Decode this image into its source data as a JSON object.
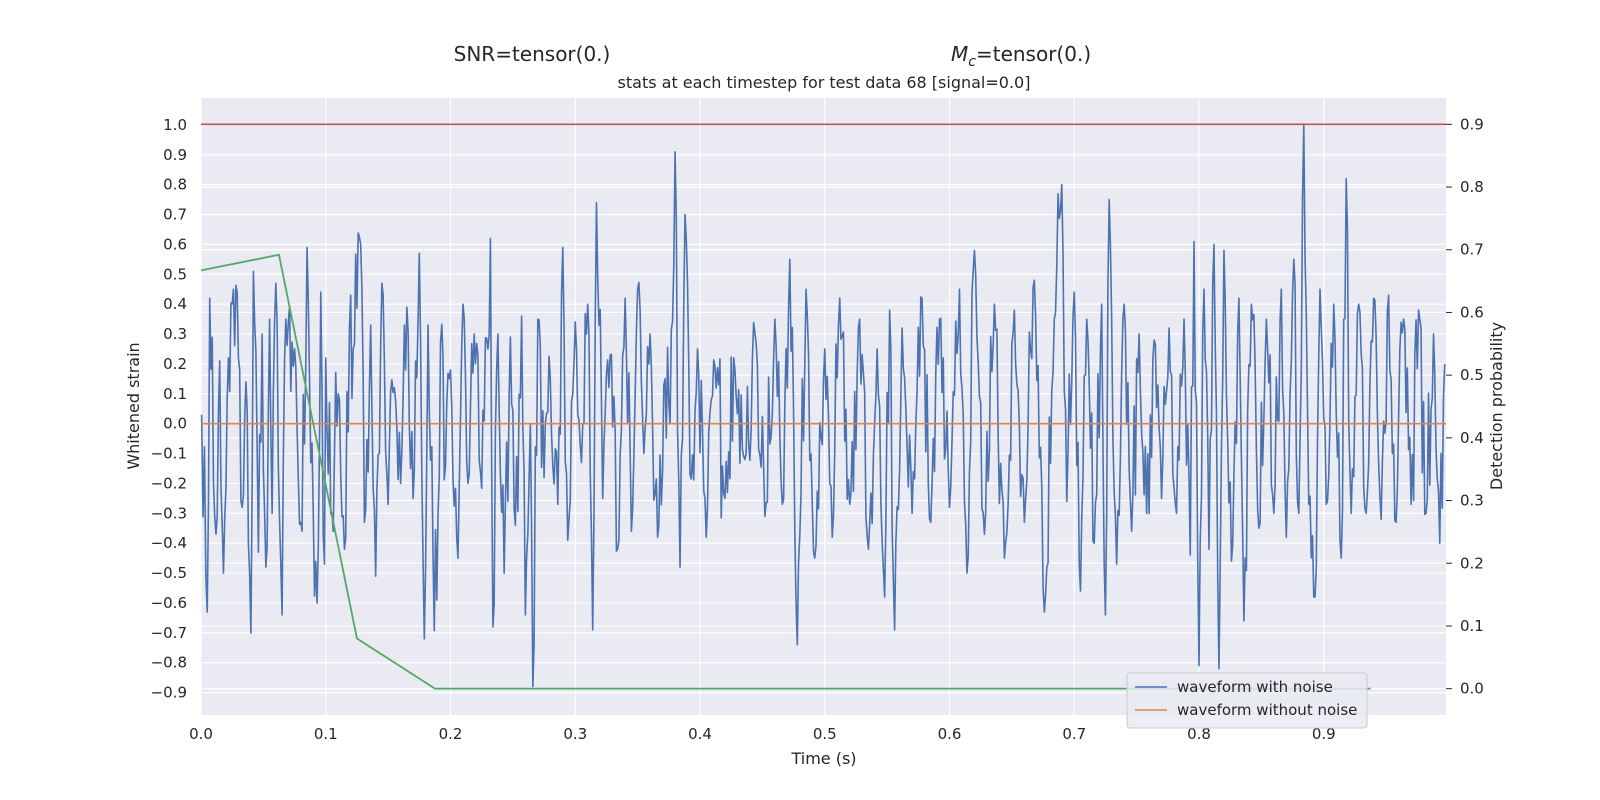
{
  "header": {
    "snr_label": "SNR=tensor(0.)",
    "mc_symbol": "M",
    "mc_subscript": "c",
    "mc_value": "=tensor(0.)"
  },
  "chart_data": {
    "type": "line",
    "title": "stats at each timestep for test data 68 [signal=0.0]",
    "xlabel": "Time (s)",
    "ylabel": "Whitened strain",
    "ylabel_right": "Detection probability",
    "xlim": [
      0.0,
      0.998
    ],
    "ylim": [
      -0.975,
      1.09
    ],
    "ylim_right": [
      -0.042,
      0.942
    ],
    "x_ticks": [
      "0.0",
      "0.1",
      "0.2",
      "0.3",
      "0.4",
      "0.5",
      "0.6",
      "0.7",
      "0.8",
      "0.9"
    ],
    "y_ticks": [
      "1.0",
      "0.9",
      "0.8",
      "0.7",
      "0.6",
      "0.5",
      "0.4",
      "0.3",
      "0.2",
      "0.1",
      "0.0",
      "−0.1",
      "−0.2",
      "−0.3",
      "−0.4",
      "−0.5",
      "−0.6",
      "−0.7",
      "−0.8",
      "−0.9"
    ],
    "y_right_ticks": [
      "0.9",
      "0.8",
      "0.7",
      "0.6",
      "0.5",
      "0.4",
      "0.3",
      "0.2",
      "0.1",
      "0.0"
    ],
    "grid": true,
    "legend_position": "lower-right",
    "colors": {
      "background": "#eaeaf2",
      "noisy": "#4c72b0",
      "clean": "#dd8452",
      "probability": "#55a868",
      "threshold": "#c44e52",
      "grid": "#ffffff"
    },
    "series": [
      {
        "name": "waveform with noise",
        "axis": "left",
        "sample_rate": 1024,
        "peaks": [
          {
            "x": 0.0005,
            "y": 0.03
          },
          {
            "x": 0.005,
            "y": -0.63
          },
          {
            "x": 0.007,
            "y": 0.42
          },
          {
            "x": 0.012,
            "y": -0.37
          },
          {
            "x": 0.015,
            "y": 0.21
          },
          {
            "x": 0.018,
            "y": -0.5
          },
          {
            "x": 0.022,
            "y": 0.22
          },
          {
            "x": 0.026,
            "y": 0.45
          },
          {
            "x": 0.029,
            "y": 0.44
          },
          {
            "x": 0.033,
            "y": -0.28
          },
          {
            "x": 0.036,
            "y": 0.14
          },
          {
            "x": 0.04,
            "y": -0.7
          },
          {
            "x": 0.042,
            "y": 0.51
          },
          {
            "x": 0.046,
            "y": -0.43
          },
          {
            "x": 0.049,
            "y": 0.3
          },
          {
            "x": 0.052,
            "y": -0.48
          },
          {
            "x": 0.055,
            "y": 0.35
          },
          {
            "x": 0.057,
            "y": -0.3
          },
          {
            "x": 0.06,
            "y": 0.47
          },
          {
            "x": 0.065,
            "y": -0.64
          },
          {
            "x": 0.068,
            "y": 0.35
          },
          {
            "x": 0.075,
            "y": 0.25
          },
          {
            "x": 0.08,
            "y": -0.33
          },
          {
            "x": 0.084,
            "y": 0.2
          },
          {
            "x": 0.085,
            "y": 0.59
          },
          {
            "x": 0.09,
            "y": -0.3
          },
          {
            "x": 0.093,
            "y": -0.6
          },
          {
            "x": 0.096,
            "y": 0.44
          },
          {
            "x": 0.099,
            "y": -0.47
          },
          {
            "x": 0.1,
            "y": 0.22
          },
          {
            "x": 0.105,
            "y": -0.3
          },
          {
            "x": 0.11,
            "y": 0.1
          },
          {
            "x": 0.115,
            "y": -0.42
          },
          {
            "x": 0.119,
            "y": 0.32
          },
          {
            "x": 0.122,
            "y": 0.25
          },
          {
            "x": 0.128,
            "y": 0.6
          },
          {
            "x": 0.131,
            "y": -0.33
          },
          {
            "x": 0.136,
            "y": 0.33
          },
          {
            "x": 0.14,
            "y": -0.51
          },
          {
            "x": 0.145,
            "y": 0.47
          },
          {
            "x": 0.15,
            "y": -0.27
          },
          {
            "x": 0.155,
            "y": 0.12
          },
          {
            "x": 0.16,
            "y": -0.2
          },
          {
            "x": 0.165,
            "y": 0.39
          },
          {
            "x": 0.17,
            "y": -0.25
          },
          {
            "x": 0.175,
            "y": 0.57
          },
          {
            "x": 0.179,
            "y": -0.72
          },
          {
            "x": 0.182,
            "y": 0.33
          },
          {
            "x": 0.186,
            "y": -0.44
          },
          {
            "x": 0.189,
            "y": -0.59
          },
          {
            "x": 0.192,
            "y": 0.27
          },
          {
            "x": 0.196,
            "y": -0.14
          },
          {
            "x": 0.2,
            "y": 0.18
          },
          {
            "x": 0.206,
            "y": -0.45
          },
          {
            "x": 0.21,
            "y": 0.4
          },
          {
            "x": 0.214,
            "y": -0.2
          },
          {
            "x": 0.219,
            "y": 0.3
          },
          {
            "x": 0.224,
            "y": -0.16
          },
          {
            "x": 0.23,
            "y": 0.25
          },
          {
            "x": 0.232,
            "y": 0.62
          },
          {
            "x": 0.234,
            "y": -0.68
          },
          {
            "x": 0.238,
            "y": 0.3
          },
          {
            "x": 0.243,
            "y": -0.5
          },
          {
            "x": 0.248,
            "y": 0.29
          },
          {
            "x": 0.252,
            "y": -0.34
          },
          {
            "x": 0.257,
            "y": 0.36
          },
          {
            "x": 0.26,
            "y": -0.64
          },
          {
            "x": 0.264,
            "y": 0.0
          },
          {
            "x": 0.266,
            "y": -0.88
          },
          {
            "x": 0.27,
            "y": 0.35
          },
          {
            "x": 0.275,
            "y": -0.18
          },
          {
            "x": 0.28,
            "y": 0.15
          },
          {
            "x": 0.286,
            "y": -0.27
          },
          {
            "x": 0.29,
            "y": 0.59
          },
          {
            "x": 0.294,
            "y": -0.39
          },
          {
            "x": 0.3,
            "y": 0.34
          },
          {
            "x": 0.305,
            "y": -0.13
          },
          {
            "x": 0.31,
            "y": 0.4
          },
          {
            "x": 0.314,
            "y": -0.69
          },
          {
            "x": 0.317,
            "y": 0.74
          },
          {
            "x": 0.322,
            "y": -0.25
          },
          {
            "x": 0.328,
            "y": 0.23
          },
          {
            "x": 0.334,
            "y": -0.42
          },
          {
            "x": 0.34,
            "y": 0.42
          },
          {
            "x": 0.345,
            "y": -0.36
          },
          {
            "x": 0.35,
            "y": 0.45
          },
          {
            "x": 0.355,
            "y": -0.1
          },
          {
            "x": 0.36,
            "y": 0.3
          },
          {
            "x": 0.366,
            "y": -0.38
          },
          {
            "x": 0.372,
            "y": 0.15
          },
          {
            "x": 0.376,
            "y": 0.0
          },
          {
            "x": 0.38,
            "y": 0.91
          },
          {
            "x": 0.384,
            "y": -0.48
          },
          {
            "x": 0.388,
            "y": 0.7
          },
          {
            "x": 0.392,
            "y": -0.17
          },
          {
            "x": 0.398,
            "y": 0.25
          },
          {
            "x": 0.405,
            "y": -0.38
          },
          {
            "x": 0.412,
            "y": 0.19
          },
          {
            "x": 0.42,
            "y": -0.25
          },
          {
            "x": 0.428,
            "y": 0.18
          },
          {
            "x": 0.436,
            "y": -0.12
          },
          {
            "x": 0.445,
            "y": 0.27
          },
          {
            "x": 0.452,
            "y": -0.31
          },
          {
            "x": 0.46,
            "y": 0.35
          },
          {
            "x": 0.466,
            "y": -0.27
          },
          {
            "x": 0.472,
            "y": 0.55
          },
          {
            "x": 0.478,
            "y": -0.74
          },
          {
            "x": 0.485,
            "y": 0.45
          },
          {
            "x": 0.492,
            "y": -0.45
          },
          {
            "x": 0.5,
            "y": 0.25
          },
          {
            "x": 0.506,
            "y": -0.38
          },
          {
            "x": 0.512,
            "y": 0.42
          },
          {
            "x": 0.52,
            "y": -0.27
          },
          {
            "x": 0.528,
            "y": 0.35
          },
          {
            "x": 0.535,
            "y": -0.42
          },
          {
            "x": 0.542,
            "y": 0.25
          },
          {
            "x": 0.548,
            "y": -0.58
          },
          {
            "x": 0.552,
            "y": 0.38
          },
          {
            "x": 0.556,
            "y": -0.69
          },
          {
            "x": 0.562,
            "y": 0.32
          },
          {
            "x": 0.57,
            "y": -0.3
          },
          {
            "x": 0.578,
            "y": 0.42
          },
          {
            "x": 0.585,
            "y": -0.33
          },
          {
            "x": 0.592,
            "y": 0.35
          },
          {
            "x": 0.6,
            "y": -0.28
          },
          {
            "x": 0.608,
            "y": 0.45
          },
          {
            "x": 0.614,
            "y": -0.5
          },
          {
            "x": 0.62,
            "y": 0.58
          },
          {
            "x": 0.628,
            "y": -0.37
          },
          {
            "x": 0.636,
            "y": 0.4
          },
          {
            "x": 0.644,
            "y": -0.45
          },
          {
            "x": 0.652,
            "y": 0.38
          },
          {
            "x": 0.66,
            "y": -0.33
          },
          {
            "x": 0.668,
            "y": 0.48
          },
          {
            "x": 0.676,
            "y": -0.63
          },
          {
            "x": 0.684,
            "y": 0.35
          },
          {
            "x": 0.69,
            "y": 0.8
          },
          {
            "x": 0.694,
            "y": -0.26
          },
          {
            "x": 0.7,
            "y": 0.44
          },
          {
            "x": 0.705,
            "y": -0.56
          },
          {
            "x": 0.71,
            "y": 0.35
          },
          {
            "x": 0.716,
            "y": -0.4
          },
          {
            "x": 0.722,
            "y": 0.4
          },
          {
            "x": 0.725,
            "y": -0.64
          },
          {
            "x": 0.728,
            "y": 0.75
          },
          {
            "x": 0.734,
            "y": -0.47
          },
          {
            "x": 0.74,
            "y": 0.4
          },
          {
            "x": 0.746,
            "y": -0.36
          },
          {
            "x": 0.752,
            "y": 0.3
          },
          {
            "x": 0.758,
            "y": -0.3
          },
          {
            "x": 0.764,
            "y": 0.28
          },
          {
            "x": 0.77,
            "y": -0.25
          },
          {
            "x": 0.776,
            "y": 0.32
          },
          {
            "x": 0.782,
            "y": -0.3
          },
          {
            "x": 0.788,
            "y": 0.35
          },
          {
            "x": 0.793,
            "y": -0.44
          },
          {
            "x": 0.796,
            "y": 0.61
          },
          {
            "x": 0.8,
            "y": -0.81
          },
          {
            "x": 0.804,
            "y": 0.45
          },
          {
            "x": 0.808,
            "y": -0.42
          },
          {
            "x": 0.812,
            "y": 0.6
          },
          {
            "x": 0.816,
            "y": -0.82
          },
          {
            "x": 0.82,
            "y": 0.58
          },
          {
            "x": 0.826,
            "y": -0.46
          },
          {
            "x": 0.832,
            "y": 0.42
          },
          {
            "x": 0.836,
            "y": -0.66
          },
          {
            "x": 0.842,
            "y": 0.4
          },
          {
            "x": 0.848,
            "y": -0.35
          },
          {
            "x": 0.854,
            "y": 0.35
          },
          {
            "x": 0.86,
            "y": -0.3
          },
          {
            "x": 0.866,
            "y": 0.45
          },
          {
            "x": 0.87,
            "y": -0.38
          },
          {
            "x": 0.876,
            "y": 0.55
          },
          {
            "x": 0.88,
            "y": -0.3
          },
          {
            "x": 0.884,
            "y": 1.0
          },
          {
            "x": 0.888,
            "y": -0.27
          },
          {
            "x": 0.893,
            "y": -0.58
          },
          {
            "x": 0.897,
            "y": 0.45
          },
          {
            "x": 0.902,
            "y": -0.27
          },
          {
            "x": 0.908,
            "y": 0.4
          },
          {
            "x": 0.914,
            "y": -0.45
          },
          {
            "x": 0.918,
            "y": 0.82
          },
          {
            "x": 0.922,
            "y": -0.3
          },
          {
            "x": 0.928,
            "y": 0.4
          },
          {
            "x": 0.934,
            "y": -0.3
          },
          {
            "x": 0.94,
            "y": 0.42
          },
          {
            "x": 0.946,
            "y": -0.32
          },
          {
            "x": 0.952,
            "y": 0.43
          },
          {
            "x": 0.958,
            "y": -0.33
          },
          {
            "x": 0.964,
            "y": 0.35
          },
          {
            "x": 0.97,
            "y": -0.27
          },
          {
            "x": 0.976,
            "y": 0.38
          },
          {
            "x": 0.982,
            "y": -0.3
          },
          {
            "x": 0.988,
            "y": 0.3
          },
          {
            "x": 0.993,
            "y": -0.4
          },
          {
            "x": 0.997,
            "y": 0.2
          }
        ]
      },
      {
        "name": "waveform without noise",
        "axis": "left",
        "x": [
          0.0,
          0.998
        ],
        "y": [
          0.0,
          0.0
        ]
      },
      {
        "axis": "right",
        "x": [
          0.0,
          0.0625,
          0.125,
          0.1875,
          0.25,
          0.3125,
          0.375,
          0.4375,
          0.5,
          0.5625,
          0.625,
          0.6875,
          0.75,
          0.8125,
          0.875,
          0.9375
        ],
        "y": [
          0.667,
          0.692,
          0.08,
          0.0,
          0.0,
          0.0,
          0.0,
          0.0,
          0.0,
          0.0,
          0.0,
          0.0,
          0.0,
          0.0,
          0.0,
          0.0
        ]
      },
      {
        "axis": "right",
        "x": [
          0.0,
          0.998
        ],
        "y": [
          0.9,
          0.9
        ]
      }
    ],
    "legend": [
      "waveform with noise",
      "waveform without noise"
    ]
  }
}
